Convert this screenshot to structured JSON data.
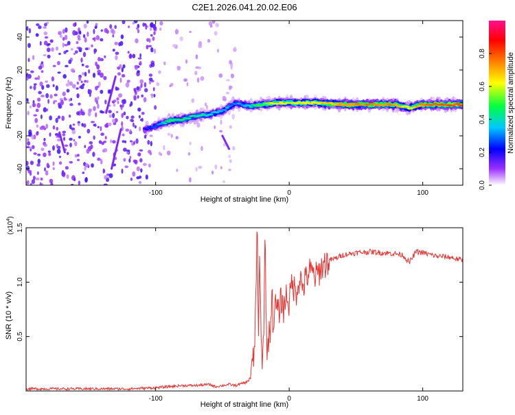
{
  "title": "C2E1.2026.041.20.02.E06",
  "chart_data": [
    {
      "type": "heatmap",
      "xlabel": "Height of straight line (km)",
      "ylabel": "Frequency (Hz)",
      "xlim": [
        -197,
        130
      ],
      "ylim": [
        -50,
        50
      ],
      "xticks": [
        -100,
        0,
        100
      ],
      "xtick_labels": [
        "-100",
        "0",
        "100"
      ],
      "yticks": [
        -40,
        -20,
        0,
        20,
        40
      ],
      "ytick_labels": [
        "-40",
        "-20",
        "0",
        "20",
        "40"
      ],
      "grid": false,
      "colorbar": {
        "label": "Normalized spectral amplitude",
        "range": [
          0,
          1
        ],
        "ticks": [
          0,
          0.2,
          0.4,
          0.6,
          0.8
        ],
        "tick_labels": [
          "0.0",
          "0.2",
          "0.4",
          "0.6",
          "0.8"
        ],
        "colors": [
          "#ffffff",
          "#9b30ff",
          "#0000ff",
          "#00c8ff",
          "#00ff40",
          "#ffff00",
          "#ff8000",
          "#ff0000",
          "#ff1090"
        ]
      },
      "ridge": [
        {
          "x": -108,
          "y": -16,
          "a": 0.25
        },
        {
          "x": -100,
          "y": -14,
          "a": 0.3
        },
        {
          "x": -90,
          "y": -11,
          "a": 0.55
        },
        {
          "x": -80,
          "y": -10,
          "a": 0.5
        },
        {
          "x": -70,
          "y": -8,
          "a": 0.5
        },
        {
          "x": -60,
          "y": -7,
          "a": 0.45
        },
        {
          "x": -50,
          "y": -5,
          "a": 0.4
        },
        {
          "x": -40,
          "y": 0,
          "a": 0.35
        },
        {
          "x": -30,
          "y": -2,
          "a": 0.45
        },
        {
          "x": -20,
          "y": -1,
          "a": 0.6
        },
        {
          "x": -10,
          "y": 0,
          "a": 0.75
        },
        {
          "x": 0,
          "y": 0,
          "a": 0.7
        },
        {
          "x": 10,
          "y": 0,
          "a": 0.7
        },
        {
          "x": 20,
          "y": 0,
          "a": 0.75
        },
        {
          "x": 40,
          "y": -1,
          "a": 0.85
        },
        {
          "x": 60,
          "y": -1,
          "a": 0.9
        },
        {
          "x": 80,
          "y": -1,
          "a": 0.85
        },
        {
          "x": 90,
          "y": -3,
          "a": 0.7
        },
        {
          "x": 100,
          "y": -1,
          "a": 0.9
        },
        {
          "x": 130,
          "y": -1,
          "a": 0.95
        }
      ]
    },
    {
      "type": "line",
      "xlabel": "Height of straight line (km)",
      "ylabel": "SNR (10 * v/v)",
      "y_multiplier": "(x10",
      "y_multiplier_exp": "4",
      "xlim": [
        -197,
        130
      ],
      "ylim": [
        0,
        1.5
      ],
      "xticks": [
        -100,
        0,
        100
      ],
      "xtick_labels": [
        "-100",
        "0",
        "100"
      ],
      "yticks": [
        0.5,
        1.0,
        1.5
      ],
      "ytick_labels": [
        "0.5",
        "1.0",
        "1.5"
      ],
      "grid": false,
      "series": [
        {
          "color": "#e8322f",
          "x": [
            -197,
            -160,
            -120,
            -100,
            -90,
            -80,
            -70,
            -60,
            -55,
            -50,
            -45,
            -40,
            -35,
            -32,
            -30,
            -28,
            -26,
            -25,
            -24,
            -23,
            -22,
            -21,
            -20,
            -19,
            -18,
            -17,
            -16,
            -15,
            -14,
            -13,
            -12,
            -10,
            -8,
            -6,
            -4,
            -2,
            0,
            2,
            5,
            8,
            10,
            15,
            20,
            25,
            30,
            35,
            40,
            50,
            60,
            70,
            80,
            85,
            90,
            95,
            100,
            110,
            120,
            130
          ],
          "y": [
            0.02,
            0.02,
            0.02,
            0.03,
            0.04,
            0.05,
            0.05,
            0.06,
            0.04,
            0.05,
            0.06,
            0.05,
            0.07,
            0.08,
            0.1,
            0.2,
            0.35,
            0.9,
            1.5,
            0.5,
            1.3,
            0.4,
            0.3,
            0.6,
            1.48,
            0.5,
            0.3,
            0.6,
            0.55,
            0.95,
            0.6,
            0.8,
            0.7,
            0.85,
            0.75,
            0.9,
            0.8,
            1.0,
            0.9,
            1.05,
            0.95,
            1.1,
            1.05,
            1.15,
            1.2,
            1.22,
            1.25,
            1.27,
            1.28,
            1.27,
            1.26,
            1.25,
            1.18,
            1.28,
            1.27,
            1.24,
            1.23,
            1.2
          ]
        }
      ]
    }
  ]
}
